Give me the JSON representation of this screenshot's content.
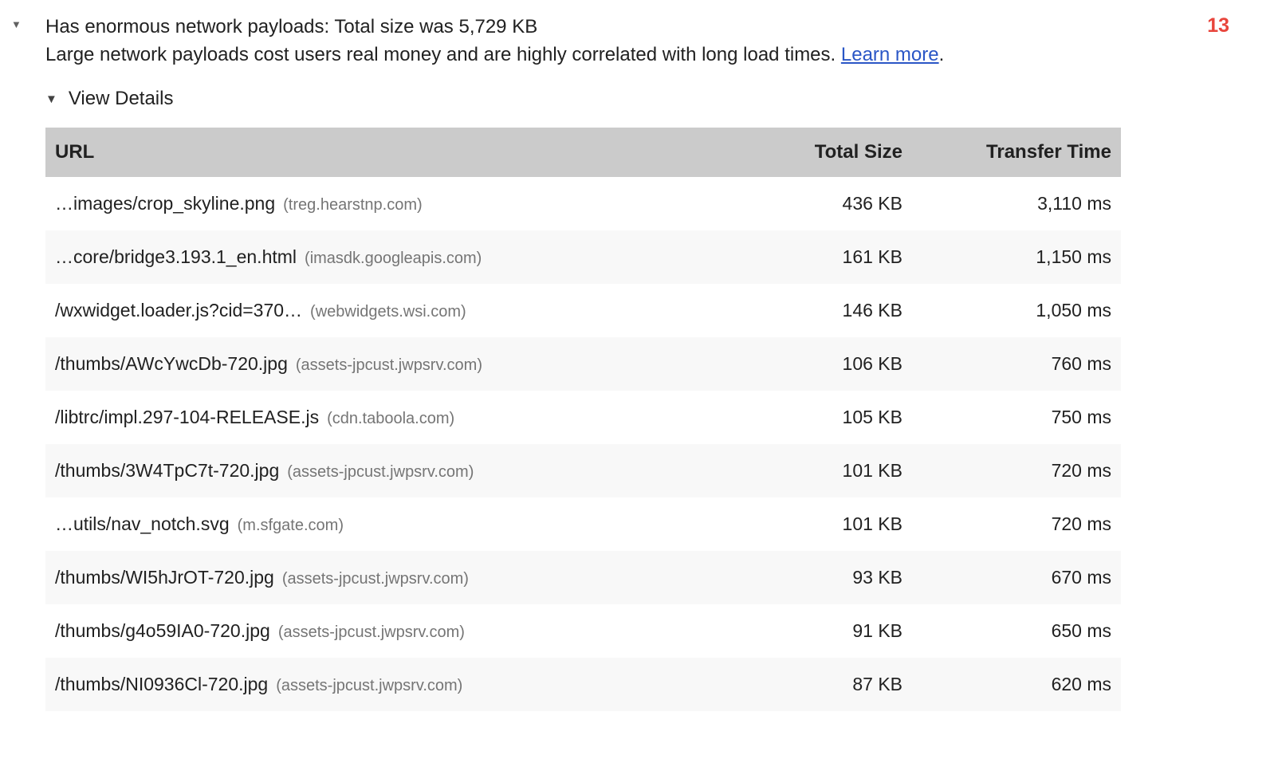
{
  "audit": {
    "collapse_icon": "▼",
    "title": "Has enormous network payloads: Total size was 5,729 KB",
    "description": "Large network payloads cost users real money and are highly correlated with long load times.",
    "learn_more_label": "Learn more",
    "description_suffix": ".",
    "score": "13",
    "view_details": {
      "icon": "▼",
      "label": "View Details"
    }
  },
  "colors": {
    "score_red": "#e8453c",
    "link_blue": "#2a56c6",
    "header_gray": "#cbcbcb"
  },
  "table": {
    "columns": [
      "URL",
      "Total Size",
      "Transfer Time"
    ],
    "rows": [
      {
        "url": "…images/crop_skyline.png",
        "domain": "(treg.hearstnp.com)",
        "size": "436 KB",
        "time": "3,110 ms"
      },
      {
        "url": "…core/bridge3.193.1_en.html",
        "domain": "(imasdk.googleapis.com)",
        "size": "161 KB",
        "time": "1,150 ms"
      },
      {
        "url": "/wxwidget.loader.js?cid=370…",
        "domain": "(webwidgets.wsi.com)",
        "size": "146 KB",
        "time": "1,050 ms"
      },
      {
        "url": "/thumbs/AWcYwcDb-720.jpg",
        "domain": "(assets-jpcust.jwpsrv.com)",
        "size": "106 KB",
        "time": "760 ms"
      },
      {
        "url": "/libtrc/impl.297-104-RELEASE.js",
        "domain": "(cdn.taboola.com)",
        "size": "105 KB",
        "time": "750 ms"
      },
      {
        "url": "/thumbs/3W4TpC7t-720.jpg",
        "domain": "(assets-jpcust.jwpsrv.com)",
        "size": "101 KB",
        "time": "720 ms"
      },
      {
        "url": "…utils/nav_notch.svg",
        "domain": "(m.sfgate.com)",
        "size": "101 KB",
        "time": "720 ms"
      },
      {
        "url": "/thumbs/WI5hJrOT-720.jpg",
        "domain": "(assets-jpcust.jwpsrv.com)",
        "size": "93 KB",
        "time": "670 ms"
      },
      {
        "url": "/thumbs/g4o59IA0-720.jpg",
        "domain": "(assets-jpcust.jwpsrv.com)",
        "size": "91 KB",
        "time": "650 ms"
      },
      {
        "url": "/thumbs/NI0936Cl-720.jpg",
        "domain": "(assets-jpcust.jwpsrv.com)",
        "size": "87 KB",
        "time": "620 ms"
      }
    ]
  }
}
